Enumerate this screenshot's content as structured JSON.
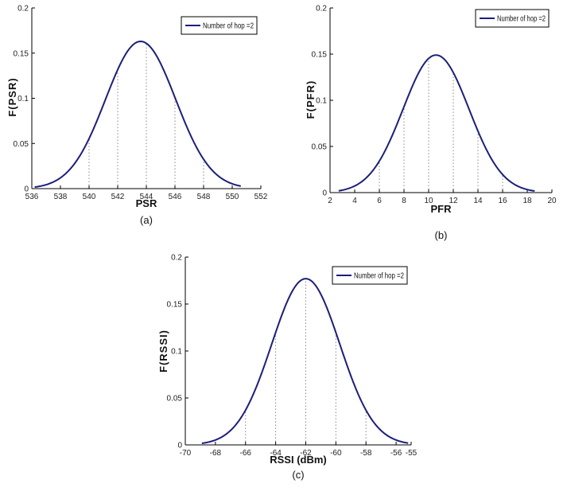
{
  "colors": {
    "curve": "#1b1f7a",
    "axis": "#000000",
    "dotted": "#888888",
    "background": "#ffffff"
  },
  "chart_data": [
    {
      "type": "line",
      "caption": "(a)",
      "xlabel": "PSR",
      "ylabel": "F(PSR)",
      "xlim": [
        536,
        552
      ],
      "ylim": [
        0,
        0.2
      ],
      "xticks": [
        536,
        538,
        540,
        542,
        544,
        546,
        548,
        550,
        552
      ],
      "yticks": [
        0,
        0.05,
        0.1,
        0.15,
        0.2
      ],
      "ytick_labels": [
        "0",
        "0.05",
        "0.1",
        "0.15",
        "0.2"
      ],
      "dotted_gridlines_x": [
        540,
        542,
        544,
        546,
        548
      ],
      "grid": "dotted vertical",
      "legend": {
        "placement": "top-right"
      },
      "series": [
        {
          "name": "Number of hop =2",
          "distribution": "normal",
          "mean": 543.6,
          "std": 2.45,
          "x_range": [
            536.2,
            550.6
          ],
          "peak": 0.163
        }
      ]
    },
    {
      "type": "line",
      "caption": "(b)",
      "xlabel": "PFR",
      "ylabel": "F(PFR)",
      "xlim": [
        2,
        20
      ],
      "ylim": [
        0,
        0.2
      ],
      "xticks": [
        2,
        4,
        6,
        8,
        10,
        12,
        14,
        16,
        18,
        20
      ],
      "yticks": [
        0,
        0.05,
        0.1,
        0.15,
        0.2
      ],
      "ytick_labels": [
        "0",
        "0.05",
        "0.1",
        "0.15",
        "0.2"
      ],
      "dotted_gridlines_x": [
        6,
        8,
        10,
        12,
        14,
        16
      ],
      "grid": "dotted vertical",
      "legend": {
        "placement": "top-right"
      },
      "series": [
        {
          "name": "Number of hop =2",
          "distribution": "normal",
          "mean": 10.6,
          "std": 2.68,
          "x_range": [
            2.7,
            18.6
          ],
          "peak": 0.149
        }
      ]
    },
    {
      "type": "line",
      "caption": "(c)",
      "xlabel": "RSSI (dBm)",
      "ylabel": "F(RSSI)",
      "xlim": [
        -70,
        -55
      ],
      "ylim": [
        0,
        0.2
      ],
      "xticks": [
        -70,
        -68,
        -66,
        -64,
        -62,
        -60,
        -58,
        -56,
        -55
      ],
      "xtick_labels": [
        "-70",
        "-68",
        "-66",
        "-64",
        "-62",
        "-60",
        "-58",
        "-56",
        "-55"
      ],
      "yticks": [
        0,
        0.05,
        0.1,
        0.15,
        0.2
      ],
      "ytick_labels": [
        "0",
        "0.05",
        "0.1",
        "0.15",
        "0.2"
      ],
      "dotted_gridlines_x": [
        -66,
        -64,
        -62,
        -60,
        -58
      ],
      "grid": "dotted vertical",
      "legend": {
        "placement": "top-right"
      },
      "series": [
        {
          "name": "Number of hop =2",
          "distribution": "normal",
          "mean": -62,
          "std": 2.26,
          "x_range": [
            -68.9,
            -55.2
          ],
          "peak": 0.177
        }
      ]
    }
  ]
}
